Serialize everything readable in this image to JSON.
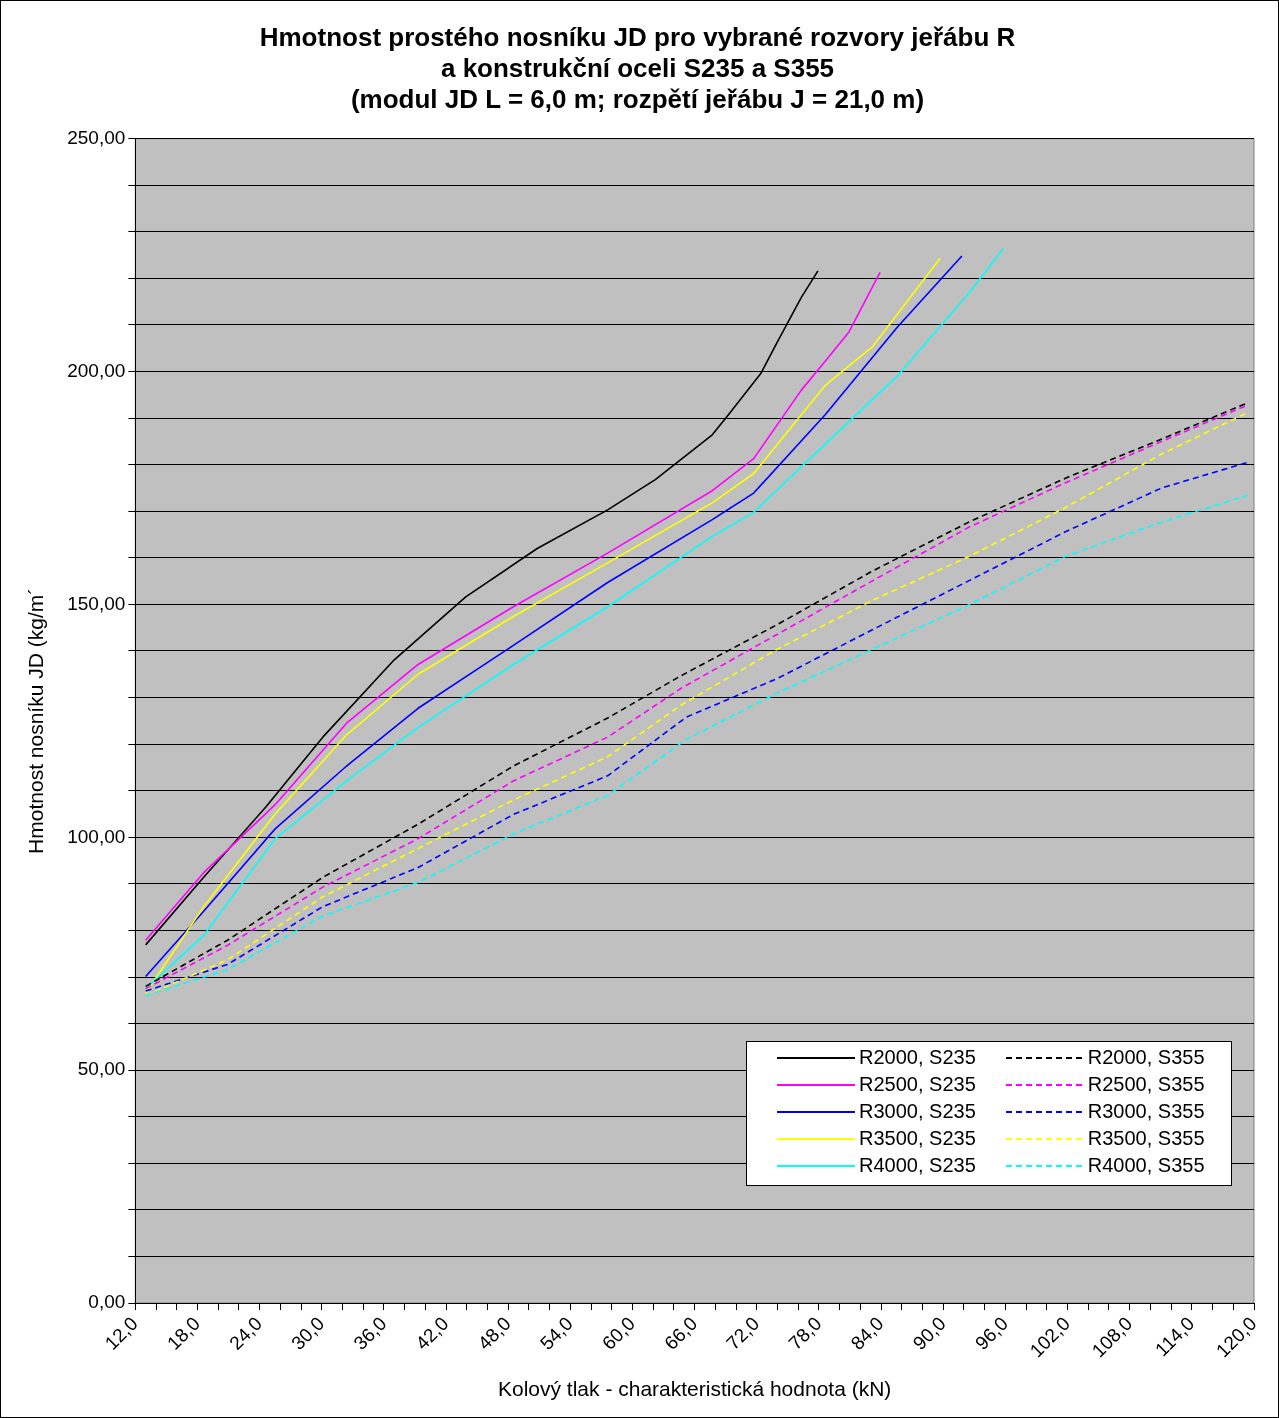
{
  "chart_data": {
    "type": "line",
    "title": "Hmotnost prostého nosníku JD pro vybrané rozvory jeřábu R\na konstrukční oceli S235 a S355\n(modul JD L = 6,0 m; rozpětí jeřábu J = 21,0 m)",
    "xlabel": "Kolový tlak - charakteristická hodnota (kN)",
    "ylabel": "Hmotnost nosníku JD (kg/m´",
    "xlim": [
      12,
      120
    ],
    "ylim": [
      0,
      250
    ],
    "xticks": [
      {
        "value": 12,
        "label": "12,0"
      },
      {
        "value": 14,
        "label": null
      },
      {
        "value": 16,
        "label": null
      },
      {
        "value": 18,
        "label": "18,0"
      },
      {
        "value": 20,
        "label": null
      },
      {
        "value": 22,
        "label": null
      },
      {
        "value": 24,
        "label": "24,0"
      },
      {
        "value": 26,
        "label": null
      },
      {
        "value": 28,
        "label": null
      },
      {
        "value": 30,
        "label": "30,0"
      },
      {
        "value": 32,
        "label": null
      },
      {
        "value": 34,
        "label": null
      },
      {
        "value": 36,
        "label": "36,0"
      },
      {
        "value": 38,
        "label": null
      },
      {
        "value": 40,
        "label": null
      },
      {
        "value": 42,
        "label": "42,0"
      },
      {
        "value": 44,
        "label": null
      },
      {
        "value": 46,
        "label": null
      },
      {
        "value": 48,
        "label": "48,0"
      },
      {
        "value": 50,
        "label": null
      },
      {
        "value": 52,
        "label": null
      },
      {
        "value": 54,
        "label": "54,0"
      },
      {
        "value": 56,
        "label": null
      },
      {
        "value": 58,
        "label": null
      },
      {
        "value": 60,
        "label": "60,0"
      },
      {
        "value": 62,
        "label": null
      },
      {
        "value": 64,
        "label": null
      },
      {
        "value": 66,
        "label": "66,0"
      },
      {
        "value": 68,
        "label": null
      },
      {
        "value": 70,
        "label": null
      },
      {
        "value": 72,
        "label": "72,0"
      },
      {
        "value": 74,
        "label": null
      },
      {
        "value": 76,
        "label": null
      },
      {
        "value": 78,
        "label": "78,0"
      },
      {
        "value": 80,
        "label": null
      },
      {
        "value": 82,
        "label": null
      },
      {
        "value": 84,
        "label": "84,0"
      },
      {
        "value": 86,
        "label": null
      },
      {
        "value": 88,
        "label": null
      },
      {
        "value": 90,
        "label": "90,0"
      },
      {
        "value": 92,
        "label": null
      },
      {
        "value": 94,
        "label": null
      },
      {
        "value": 96,
        "label": "96,0"
      },
      {
        "value": 98,
        "label": null
      },
      {
        "value": 100,
        "label": null
      },
      {
        "value": 102,
        "label": "102,0"
      },
      {
        "value": 104,
        "label": null
      },
      {
        "value": 106,
        "label": null
      },
      {
        "value": 108,
        "label": "108,0"
      },
      {
        "value": 110,
        "label": null
      },
      {
        "value": 112,
        "label": null
      },
      {
        "value": 114,
        "label": "114,0"
      },
      {
        "value": 116,
        "label": null
      },
      {
        "value": 118,
        "label": null
      },
      {
        "value": 120,
        "label": "120,0"
      }
    ],
    "yticks": [
      {
        "value": 0,
        "label": "0,00"
      },
      {
        "value": 10,
        "label": null
      },
      {
        "value": 20,
        "label": null
      },
      {
        "value": 30,
        "label": null
      },
      {
        "value": 40,
        "label": null
      },
      {
        "value": 50,
        "label": "50,00"
      },
      {
        "value": 60,
        "label": null
      },
      {
        "value": 70,
        "label": null
      },
      {
        "value": 80,
        "label": null
      },
      {
        "value": 90,
        "label": null
      },
      {
        "value": 100,
        "label": "100,00"
      },
      {
        "value": 110,
        "label": null
      },
      {
        "value": 120,
        "label": null
      },
      {
        "value": 130,
        "label": null
      },
      {
        "value": 140,
        "label": null
      },
      {
        "value": 150,
        "label": "150,00"
      },
      {
        "value": 160,
        "label": null
      },
      {
        "value": 170,
        "label": null
      },
      {
        "value": 180,
        "label": null
      },
      {
        "value": 190,
        "label": null
      },
      {
        "value": 200,
        "label": "200,00"
      },
      {
        "value": 210,
        "label": null
      },
      {
        "value": 220,
        "label": null
      },
      {
        "value": 230,
        "label": null
      },
      {
        "value": 240,
        "label": null
      },
      {
        "value": 250,
        "label": "250,00"
      }
    ],
    "grid": "y",
    "legend": "bottom right",
    "marker": "none",
    "series": [
      {
        "name": "R2000, S235",
        "color": "#000000",
        "line_style": "solid",
        "x": [
          13,
          18.6,
          24.6,
          30.1,
          37,
          43.9,
          50.8,
          57.6,
          62.2,
          67.7,
          69.3,
          72.4,
          74,
          76.3,
          77.9
        ],
        "values": [
          76.9,
          91.4,
          106.5,
          121.5,
          138.1,
          151.6,
          162,
          170.3,
          176.8,
          186.4,
          190.8,
          199.6,
          206.4,
          215.9,
          221.6
        ]
      },
      {
        "name": "R2500, S235",
        "color": "#ff00ff",
        "line_style": "solid",
        "x": [
          13,
          18.6,
          25.5,
          32.4,
          39.3,
          48.5,
          57.6,
          67.7,
          71.7,
          76.3,
          78.6,
          80.9,
          83.9
        ],
        "values": [
          77.9,
          92.4,
          107,
          124.5,
          137.1,
          149.5,
          161,
          174.4,
          181.3,
          196,
          202.2,
          208.5,
          221.3
        ]
      },
      {
        "name": "R3000, S235",
        "color": "#0000ff",
        "line_style": "solid",
        "x": [
          13,
          18.6,
          25.5,
          32.4,
          39.3,
          48.5,
          57.6,
          67.7,
          71.7,
          78.6,
          85.6,
          91.8
        ],
        "values": [
          70.1,
          84.1,
          101.8,
          115.3,
          127.7,
          141.2,
          154.7,
          168.2,
          173.9,
          190.7,
          209.6,
          224.8
        ]
      },
      {
        "name": "R3500, S235",
        "color": "#ffff00",
        "line_style": "solid",
        "x": [
          13,
          18.6,
          25.5,
          32.4,
          39.3,
          48.5,
          57.6,
          67.7,
          71.7,
          78.6,
          83.2,
          89.7
        ],
        "values": [
          66.5,
          85.1,
          105,
          122,
          135,
          147.4,
          158.9,
          171.8,
          178.1,
          197,
          205.4,
          224.3
        ]
      },
      {
        "name": "R4000, S235",
        "color": "#00ffff",
        "line_style": "solid",
        "x": [
          13,
          18.6,
          25.5,
          32.4,
          39.3,
          48.5,
          57.6,
          67.7,
          71.7,
          78.6,
          85.6,
          92.5,
          95.8
        ],
        "values": [
          67.5,
          78.9,
          99.7,
          112.1,
          123.6,
          137.1,
          149.5,
          164.6,
          169.8,
          184.4,
          199.1,
          216.9,
          226.4
        ]
      },
      {
        "name": "R2000, S355",
        "color": "#000000",
        "line_style": "dashed",
        "x": [
          13,
          20.9,
          30.1,
          39.3,
          48.5,
          57.6,
          64.7,
          74,
          83.2,
          92.5,
          101.8,
          111.1,
          119.4
        ],
        "values": [
          68,
          77.9,
          91.4,
          102.8,
          115.3,
          125.6,
          134.7,
          145.7,
          157.2,
          167.7,
          177.1,
          185.5,
          193.3
        ]
      },
      {
        "name": "R2500, S355",
        "color": "#ff00ff",
        "line_style": "dashed",
        "x": [
          13,
          20.9,
          30.1,
          39.3,
          48.5,
          57.6,
          64.7,
          74,
          83.2,
          92.5,
          101.8,
          111.1,
          119.4
        ],
        "values": [
          67.5,
          76.8,
          89.3,
          99.7,
          112.1,
          121.5,
          132,
          143.6,
          155.1,
          166.6,
          176.1,
          185,
          192.8
        ]
      },
      {
        "name": "R3000, S355",
        "color": "#0000ff",
        "line_style": "dashed",
        "x": [
          13,
          20.9,
          30.1,
          39.3,
          48.5,
          57.6,
          65.2,
          74,
          83.2,
          92.5,
          101.8,
          111.1,
          119.4
        ],
        "values": [
          67,
          72.7,
          85.1,
          93.5,
          104.9,
          113.2,
          125.8,
          134.1,
          144.6,
          155.1,
          165.6,
          175,
          180.5
        ]
      },
      {
        "name": "R3500, S355",
        "color": "#ffff00",
        "line_style": "dashed",
        "x": [
          13,
          20.9,
          30.1,
          39.3,
          48.5,
          57.6,
          64.7,
          74,
          83.2,
          92.5,
          101.8,
          111.1,
          119.4
        ],
        "values": [
          66,
          73.7,
          87.2,
          97.6,
          108,
          117.3,
          128.4,
          140.4,
          150.9,
          160.3,
          170.8,
          182.3,
          191.2
        ]
      },
      {
        "name": "R4000, S355",
        "color": "#00ffff",
        "line_style": "dashed",
        "x": [
          13,
          20.9,
          30.1,
          39.3,
          48.5,
          57.6,
          65.2,
          74,
          83.2,
          92.5,
          101.8,
          111.1,
          119.4
        ],
        "values": [
          66,
          71.6,
          83.1,
          90.3,
          100.7,
          109,
          121,
          131,
          140.4,
          149.9,
          160.3,
          167.7,
          173.4
        ]
      }
    ]
  }
}
